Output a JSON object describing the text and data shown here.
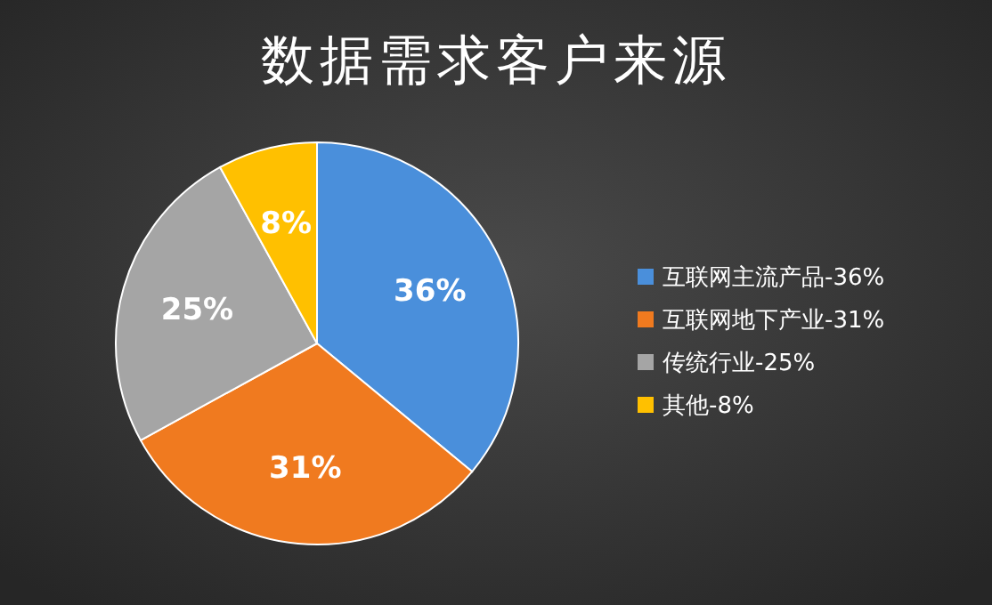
{
  "chart_data": {
    "type": "pie",
    "title": "数据需求客户来源",
    "categories": [
      "互联网主流产品-36%",
      "互联网地下产业-31%",
      "传统行业-25%",
      "其他-8%"
    ],
    "values": [
      36,
      31,
      25,
      8
    ],
    "value_labels": [
      "36%",
      "31%",
      "25%",
      "8%"
    ],
    "colors": [
      "#4a8fdb",
      "#f07a1f",
      "#a5a5a5",
      "#ffc000"
    ],
    "legend": "right"
  }
}
